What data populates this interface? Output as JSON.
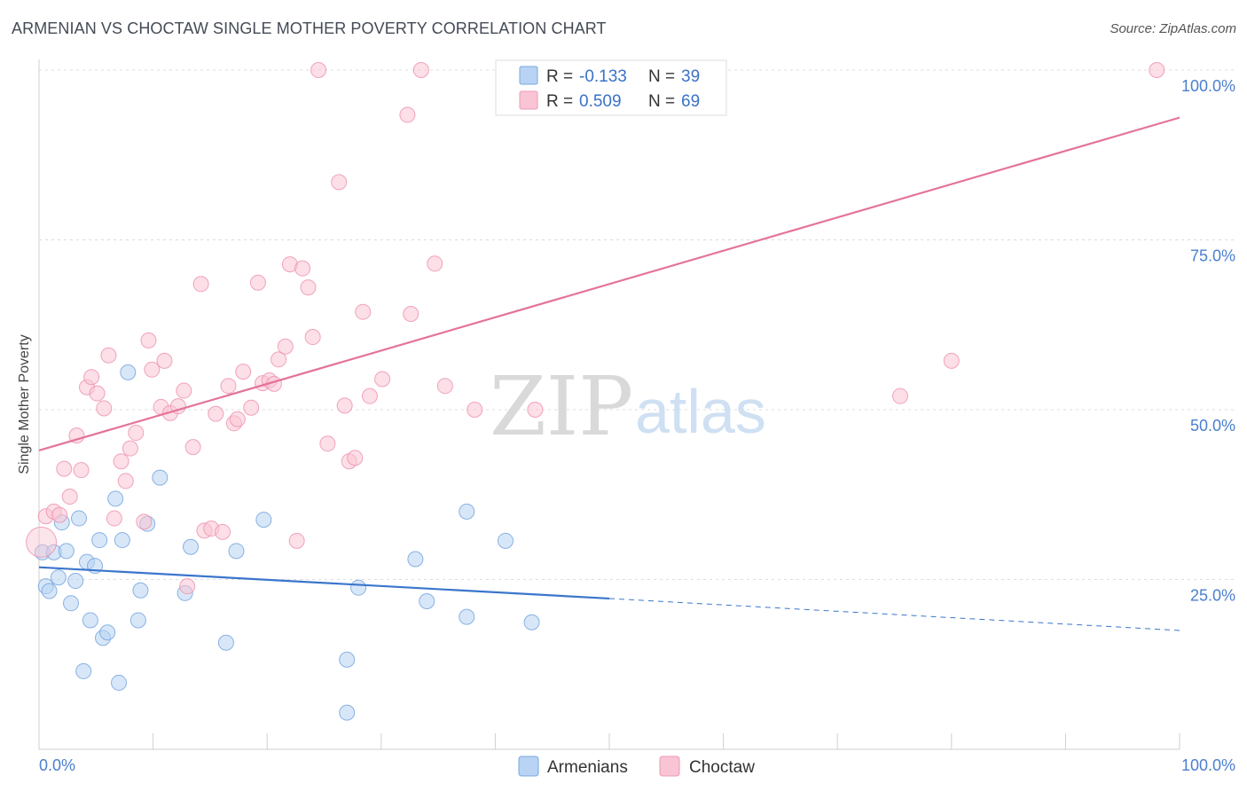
{
  "title": "ARMENIAN VS CHOCTAW SINGLE MOTHER POVERTY CORRELATION CHART",
  "source": "Source: ZipAtlas.com",
  "watermark": {
    "zip": "ZIP",
    "atlas": "atlas"
  },
  "legend": {
    "r_label": "R =",
    "n_label": "N =",
    "entries": [
      {
        "name": "Armenians",
        "r": "-0.133",
        "n": "39",
        "fill": "#b8d3f3",
        "stroke": "#7aa8e0"
      },
      {
        "name": "Choctaw",
        "r": "0.509",
        "n": "69",
        "fill": "#f9c4d3",
        "stroke": "#ec9ab4"
      }
    ]
  },
  "chart_data": {
    "type": "scatter",
    "title": "ARMENIAN VS CHOCTAW SINGLE MOTHER POVERTY CORRELATION CHART",
    "xlabel": "",
    "ylabel": "Single Mother Poverty",
    "xlim": [
      0,
      100
    ],
    "ylim": [
      0,
      100
    ],
    "x_tick_labels": [
      "0.0%",
      "100.0%"
    ],
    "y_ticks": [
      25,
      50,
      75,
      100
    ],
    "y_tick_labels": [
      "25.0%",
      "50.0%",
      "75.0%",
      "100.0%"
    ],
    "grid": "horizontal dashed",
    "legend_position": "top-center",
    "series": [
      {
        "name": "Armenians",
        "color": "#6fa0dd",
        "points": [
          [
            0.3,
            29.0
          ],
          [
            0.6,
            24.0
          ],
          [
            0.9,
            23.3
          ],
          [
            1.3,
            29.0
          ],
          [
            1.7,
            25.3
          ],
          [
            2.0,
            33.4
          ],
          [
            2.4,
            29.2
          ],
          [
            2.8,
            21.5
          ],
          [
            3.2,
            24.8
          ],
          [
            3.5,
            34.0
          ],
          [
            3.9,
            11.5
          ],
          [
            4.2,
            27.6
          ],
          [
            4.5,
            19.0
          ],
          [
            4.9,
            27.0
          ],
          [
            5.3,
            30.8
          ],
          [
            5.6,
            16.4
          ],
          [
            6.0,
            17.2
          ],
          [
            6.7,
            36.9
          ],
          [
            7.0,
            9.8
          ],
          [
            7.3,
            30.8
          ],
          [
            7.8,
            55.5
          ],
          [
            8.7,
            19.0
          ],
          [
            8.9,
            23.4
          ],
          [
            9.5,
            33.2
          ],
          [
            10.6,
            40.0
          ],
          [
            12.8,
            23.0
          ],
          [
            13.3,
            29.8
          ],
          [
            16.4,
            15.7
          ],
          [
            17.3,
            29.2
          ],
          [
            19.7,
            33.8
          ],
          [
            27.0,
            13.2
          ],
          [
            27.0,
            5.4
          ],
          [
            28.0,
            23.8
          ],
          [
            33.0,
            28.0
          ],
          [
            34.0,
            21.8
          ],
          [
            37.5,
            35.0
          ],
          [
            37.5,
            19.5
          ],
          [
            40.9,
            30.7
          ],
          [
            43.2,
            18.7
          ]
        ],
        "trend": {
          "x0": 0,
          "y0": 26.8,
          "x1": 50,
          "y1": 22.2,
          "dashed_to_x": 100,
          "dashed_to_y": 17.5
        }
      },
      {
        "name": "Choctaw",
        "color": "#ee8fae",
        "points": [
          [
            0.6,
            34.3
          ],
          [
            1.3,
            35.0
          ],
          [
            1.8,
            34.5
          ],
          [
            2.2,
            41.3
          ],
          [
            2.7,
            37.2
          ],
          [
            3.3,
            46.2
          ],
          [
            3.7,
            41.1
          ],
          [
            4.2,
            53.3
          ],
          [
            4.6,
            54.8
          ],
          [
            5.1,
            52.4
          ],
          [
            5.7,
            50.2
          ],
          [
            6.1,
            58.0
          ],
          [
            6.6,
            34.0
          ],
          [
            7.2,
            42.4
          ],
          [
            7.6,
            39.5
          ],
          [
            8.0,
            44.3
          ],
          [
            8.5,
            46.6
          ],
          [
            9.2,
            33.5
          ],
          [
            9.6,
            60.2
          ],
          [
            9.9,
            55.9
          ],
          [
            10.7,
            50.4
          ],
          [
            11.0,
            57.2
          ],
          [
            11.5,
            49.5
          ],
          [
            12.2,
            50.5
          ],
          [
            12.7,
            52.8
          ],
          [
            13.0,
            24.0
          ],
          [
            13.5,
            44.5
          ],
          [
            14.2,
            68.5
          ],
          [
            14.5,
            32.2
          ],
          [
            15.1,
            32.5
          ],
          [
            15.5,
            49.4
          ],
          [
            16.1,
            32.0
          ],
          [
            16.6,
            53.5
          ],
          [
            17.1,
            48.0
          ],
          [
            17.4,
            48.6
          ],
          [
            17.9,
            55.6
          ],
          [
            18.6,
            50.3
          ],
          [
            19.2,
            68.7
          ],
          [
            19.6,
            53.9
          ],
          [
            20.2,
            54.3
          ],
          [
            20.6,
            53.8
          ],
          [
            21.0,
            57.4
          ],
          [
            21.6,
            59.3
          ],
          [
            22.0,
            71.4
          ],
          [
            22.6,
            30.7
          ],
          [
            23.1,
            70.8
          ],
          [
            23.6,
            68.0
          ],
          [
            24.0,
            60.7
          ],
          [
            24.5,
            100.0
          ],
          [
            25.3,
            45.0
          ],
          [
            26.3,
            83.5
          ],
          [
            26.8,
            50.6
          ],
          [
            27.2,
            42.4
          ],
          [
            27.7,
            42.9
          ],
          [
            28.4,
            64.4
          ],
          [
            29.0,
            52.0
          ],
          [
            30.1,
            54.5
          ],
          [
            32.3,
            93.4
          ],
          [
            32.6,
            64.1
          ],
          [
            33.5,
            100.0
          ],
          [
            34.7,
            71.5
          ],
          [
            35.6,
            53.5
          ],
          [
            38.2,
            50.0
          ],
          [
            43.5,
            50.0
          ],
          [
            45.0,
            100.0
          ],
          [
            75.5,
            52.0
          ],
          [
            80.0,
            57.2
          ],
          [
            98.0,
            100.0
          ],
          [
            0.2,
            30.5
          ]
        ],
        "trend": {
          "x0": 0,
          "y0": 44.0,
          "x1": 100,
          "y1": 93.0
        }
      }
    ]
  }
}
